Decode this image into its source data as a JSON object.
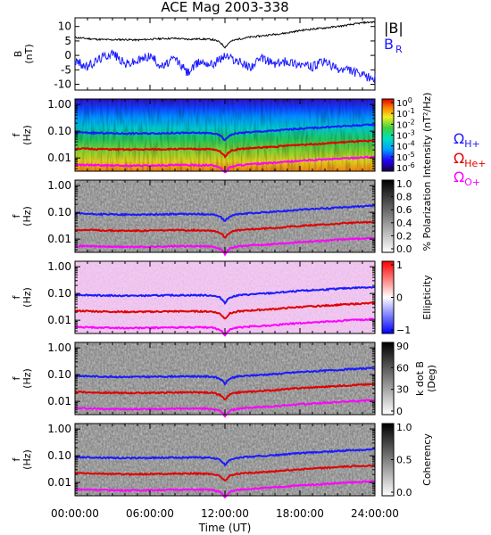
{
  "title": "ACE Mag 2003-338",
  "colors": {
    "background": "#ffffff",
    "B_total": "#000000",
    "B_radial": "#1a1aff",
    "H_plus": "#1a1aff",
    "He_plus": "#e00000",
    "O_plus": "#ff00ff"
  },
  "x_axis": {
    "label": "Time (UT)",
    "ticks": [
      "00:00:00",
      "06:00:00",
      "12:00:00",
      "18:00:00",
      "24:00:00"
    ],
    "range_hours": [
      0,
      24
    ]
  },
  "chart_data": [
    {
      "type": "line",
      "panel": "magnetic-field",
      "ylabel": [
        "B",
        "(nT)"
      ],
      "ylim": [
        -12,
        13
      ],
      "yticks": [
        "10",
        "5",
        "0",
        "-5",
        "-10"
      ],
      "legend": [
        "|B|",
        "B",
        "R"
      ],
      "series": [
        {
          "name": "|B|",
          "x_hours": [
            0,
            1,
            2,
            3,
            4,
            5,
            6,
            7,
            8,
            9,
            10,
            11,
            11.6,
            12,
            12.4,
            13,
            14,
            15,
            16,
            17,
            18,
            19,
            20,
            21,
            22,
            23,
            24
          ],
          "values": [
            6.2,
            5.8,
            5.5,
            5.4,
            5.5,
            5.3,
            5.6,
            5.8,
            5.9,
            5.6,
            5.7,
            5.5,
            4.6,
            2.8,
            4.7,
            5.6,
            6.3,
            6.8,
            7.3,
            7.8,
            8.6,
            9.1,
            9.5,
            10.0,
            10.6,
            11.3,
            11.6
          ]
        },
        {
          "name": "B",
          "x_hours": [
            0,
            1,
            2,
            3,
            4,
            5,
            6,
            7,
            8,
            9,
            10,
            11,
            12,
            13,
            14,
            15,
            16,
            17,
            18,
            19,
            20,
            21,
            22,
            23,
            24
          ],
          "values": [
            -2,
            -4,
            -1,
            1,
            -3,
            -2,
            0,
            -4,
            -1,
            -6,
            -2,
            -3,
            0,
            -2,
            -4,
            -1,
            -3,
            -2,
            -3,
            -4,
            -2,
            -5,
            -5,
            -7,
            -8
          ]
        }
      ]
    },
    {
      "type": "heatmap",
      "panel": "intensity",
      "ylabel": [
        "f",
        "(Hz)"
      ],
      "yticks": [
        "1.00",
        "0.10",
        "0.01"
      ],
      "colorbar": {
        "label": "Intensity (nT²/Hz)",
        "ticks": [
          {
            "base": "10",
            "exp": "0"
          },
          {
            "base": "10",
            "exp": "-1"
          },
          {
            "base": "10",
            "exp": "-2"
          },
          {
            "base": "10",
            "exp": "-3"
          },
          {
            "base": "10",
            "exp": "-4"
          },
          {
            "base": "10",
            "exp": "-5"
          },
          {
            "base": "10",
            "exp": "-6"
          }
        ]
      },
      "gyrofrequency_labels": [
        {
          "base": "Ω",
          "sub": "H+"
        },
        {
          "base": "Ω",
          "sub": "He+"
        },
        {
          "base": "Ω",
          "sub": "O+"
        }
      ]
    },
    {
      "type": "heatmap",
      "panel": "polarization",
      "ylabel": [
        "f",
        "(Hz)"
      ],
      "yticks": [
        "1.00",
        "0.10",
        "0.01"
      ],
      "colorbar": {
        "label": "% Polarization",
        "ticks": [
          "1.0",
          "0.8",
          "0.6",
          "0.4",
          "0.2",
          "0.0"
        ]
      }
    },
    {
      "type": "heatmap",
      "panel": "ellipticity",
      "ylabel": [
        "f",
        "(Hz)"
      ],
      "yticks": [
        "1.00",
        "0.10",
        "0.01"
      ],
      "colorbar": {
        "label": "Ellipticity",
        "ticks": [
          "1",
          "0",
          "−1"
        ]
      }
    },
    {
      "type": "heatmap",
      "panel": "wave-normal-angle",
      "ylabel": [
        "f",
        "(Hz)"
      ],
      "yticks": [
        "1.00",
        "0.10",
        "0.01"
      ],
      "colorbar": {
        "label_lines": [
          "k dot B",
          "(Deg)"
        ],
        "ticks": [
          "90",
          "60",
          "30",
          "0"
        ]
      }
    },
    {
      "type": "heatmap",
      "panel": "coherency",
      "ylabel": [
        "f",
        "(Hz)"
      ],
      "yticks": [
        "1.00",
        "0.10",
        "0.01"
      ],
      "colorbar": {
        "label": "Coherency",
        "ticks": [
          "1.0",
          "0.5",
          "0.0"
        ]
      }
    }
  ],
  "gyrofrequency_curves_hz": {
    "x_hours": [
      0,
      2,
      4,
      6,
      8,
      10,
      11,
      11.6,
      12,
      12.4,
      13,
      14,
      16,
      18,
      20,
      22,
      24
    ],
    "H_plus": [
      0.09,
      0.085,
      0.082,
      0.083,
      0.086,
      0.086,
      0.084,
      0.07,
      0.045,
      0.072,
      0.085,
      0.092,
      0.105,
      0.125,
      0.14,
      0.16,
      0.175
    ],
    "He_plus": [
      0.0225,
      0.0213,
      0.0205,
      0.0208,
      0.0215,
      0.0215,
      0.021,
      0.0175,
      0.0113,
      0.018,
      0.0213,
      0.023,
      0.0263,
      0.0313,
      0.035,
      0.04,
      0.0438
    ],
    "O_plus": [
      0.0056,
      0.0053,
      0.0051,
      0.0052,
      0.0054,
      0.0054,
      0.0053,
      0.0044,
      0.0028,
      0.0045,
      0.0053,
      0.0058,
      0.0066,
      0.0078,
      0.0088,
      0.01,
      0.011
    ]
  }
}
